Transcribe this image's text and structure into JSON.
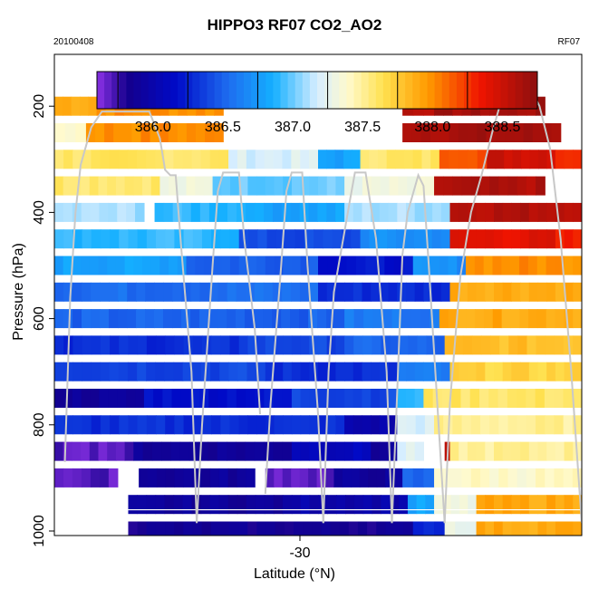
{
  "header": {
    "title": "HIPPO3 RF07 CO2_AO2",
    "left_note": "20100408",
    "right_note": "RF07"
  },
  "chart_data": {
    "type": "heatmap",
    "title": "HIPPO3 RF07 CO2_AO2",
    "xlabel": "Latitude (°N)",
    "ylabel": "Pressure (hPa)",
    "x_ticks": [
      "-30"
    ],
    "y_ticks": [
      "200",
      "400",
      "600",
      "800",
      "1000"
    ],
    "y_axis_inverted": true,
    "colorbar": {
      "position": "top",
      "range": [
        385.6,
        388.75
      ],
      "tick_labels": [
        "386.0",
        "386.5",
        "387.0",
        "387.5",
        "388.0",
        "388.5"
      ],
      "tick_values": [
        386.0,
        386.5,
        387.0,
        387.5,
        388.0,
        388.5
      ],
      "palette": "purple-blue-white-yellow-red"
    },
    "rows": [
      {
        "pressure": 200,
        "segments": [
          [
            0,
            0.08,
            387.9
          ],
          [
            0.08,
            0.32,
            388.0
          ],
          [
            0.66,
            0.72,
            388.6
          ],
          [
            0.72,
            0.93,
            388.65
          ]
        ]
      },
      {
        "pressure": 250,
        "segments": [
          [
            0,
            0.06,
            387.4
          ],
          [
            0.06,
            0.32,
            388.0
          ],
          [
            0.66,
            0.96,
            388.65
          ]
        ]
      },
      {
        "pressure": 300,
        "segments": [
          [
            0,
            0.33,
            387.6
          ],
          [
            0.33,
            0.5,
            387.2
          ],
          [
            0.5,
            0.58,
            386.8
          ],
          [
            0.58,
            0.73,
            387.6
          ],
          [
            0.73,
            0.82,
            388.2
          ],
          [
            0.82,
            0.95,
            388.5
          ],
          [
            0.95,
            1.0,
            388.3
          ]
        ]
      },
      {
        "pressure": 350,
        "segments": [
          [
            0,
            0.2,
            387.6
          ],
          [
            0.2,
            0.3,
            387.3
          ],
          [
            0.3,
            0.55,
            387.0
          ],
          [
            0.55,
            0.72,
            387.3
          ],
          [
            0.72,
            0.93,
            388.6
          ]
        ]
      },
      {
        "pressure": 400,
        "segments": [
          [
            0,
            0.17,
            387.1
          ],
          [
            0.19,
            0.38,
            386.9
          ],
          [
            0.38,
            0.55,
            386.8
          ],
          [
            0.55,
            0.75,
            387.1
          ],
          [
            0.75,
            1.0,
            388.6
          ]
        ]
      },
      {
        "pressure": 450,
        "segments": [
          [
            0,
            0.35,
            386.9
          ],
          [
            0.35,
            0.58,
            386.4
          ],
          [
            0.58,
            0.75,
            386.7
          ],
          [
            0.75,
            0.95,
            388.4
          ],
          [
            0.95,
            1.0,
            388.3
          ]
        ]
      },
      {
        "pressure": 500,
        "segments": [
          [
            0,
            0.25,
            386.8
          ],
          [
            0.25,
            0.5,
            386.5
          ],
          [
            0.5,
            0.68,
            386.2
          ],
          [
            0.68,
            0.78,
            386.7
          ],
          [
            0.78,
            1.0,
            388.0
          ]
        ]
      },
      {
        "pressure": 550,
        "segments": [
          [
            0,
            0.5,
            386.55
          ],
          [
            0.5,
            0.75,
            386.3
          ],
          [
            0.75,
            1.0,
            387.9
          ]
        ]
      },
      {
        "pressure": 600,
        "segments": [
          [
            0,
            0.55,
            386.5
          ],
          [
            0.55,
            0.73,
            386.6
          ],
          [
            0.73,
            1.0,
            387.9
          ]
        ]
      },
      {
        "pressure": 650,
        "segments": [
          [
            0,
            0.35,
            386.3
          ],
          [
            0.35,
            0.55,
            386.4
          ],
          [
            0.55,
            0.74,
            386.5
          ],
          [
            0.74,
            1.0,
            387.8
          ]
        ]
      },
      {
        "pressure": 700,
        "segments": [
          [
            0,
            0.4,
            386.4
          ],
          [
            0.4,
            0.65,
            386.3
          ],
          [
            0.65,
            0.75,
            386.6
          ],
          [
            0.75,
            1.0,
            387.7
          ]
        ]
      },
      {
        "pressure": 750,
        "segments": [
          [
            0,
            0.17,
            385.9
          ],
          [
            0.17,
            0.45,
            386.2
          ],
          [
            0.45,
            0.65,
            386.4
          ],
          [
            0.65,
            0.7,
            386.9
          ],
          [
            0.7,
            1.0,
            387.6
          ]
        ]
      },
      {
        "pressure": 800,
        "segments": [
          [
            0,
            0.35,
            386.3
          ],
          [
            0.35,
            0.55,
            386.3
          ],
          [
            0.55,
            0.65,
            386.0
          ],
          [
            0.65,
            0.72,
            387.2
          ],
          [
            0.72,
            1.0,
            387.5
          ]
        ]
      },
      {
        "pressure": 850,
        "segments": [
          [
            0,
            0.15,
            385.7
          ],
          [
            0.15,
            0.45,
            385.9
          ],
          [
            0.45,
            0.6,
            386.1
          ],
          [
            0.6,
            0.65,
            385.9
          ],
          [
            0.65,
            0.7,
            387.2
          ],
          [
            0.74,
            0.75,
            388.5
          ],
          [
            0.75,
            1.0,
            387.5
          ]
        ]
      },
      {
        "pressure": 900,
        "segments": [
          [
            0,
            0.12,
            385.7
          ],
          [
            0.16,
            0.38,
            385.9
          ],
          [
            0.4,
            0.53,
            385.7
          ],
          [
            0.53,
            0.66,
            385.9
          ],
          [
            0.66,
            0.72,
            386.5
          ],
          [
            0.72,
            1.0,
            387.4
          ]
        ]
      },
      {
        "pressure": 950,
        "segments": [
          [
            0.14,
            0.45,
            385.9
          ],
          [
            0.45,
            0.67,
            386.0
          ],
          [
            0.67,
            0.72,
            386.8
          ],
          [
            0.72,
            0.8,
            387.3
          ],
          [
            0.8,
            1.0,
            387.9
          ]
        ]
      },
      {
        "pressure": 1000,
        "segments": [
          [
            0.14,
            0.68,
            385.85
          ],
          [
            0.68,
            0.74,
            386.3
          ],
          [
            0.74,
            0.8,
            387.3
          ],
          [
            0.8,
            1.0,
            387.9
          ]
        ]
      }
    ]
  }
}
